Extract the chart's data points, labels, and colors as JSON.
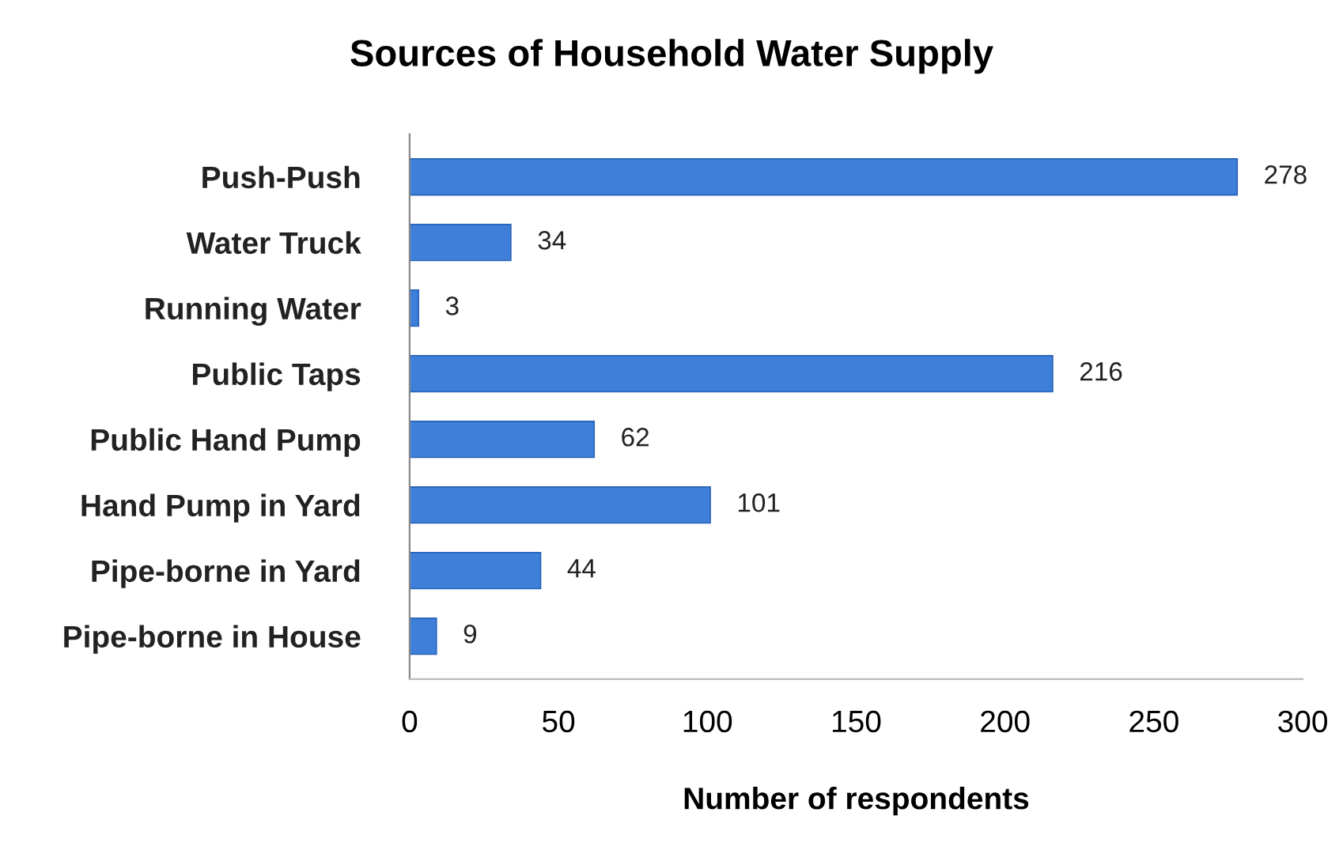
{
  "chart_data": {
    "type": "bar",
    "orientation": "horizontal",
    "title": "Sources of Household Water Supply",
    "xlabel": "Number of respondents",
    "categories": [
      "Push-Push",
      "Water Truck",
      "Running Water",
      "Public Taps",
      "Public Hand Pump",
      "Hand Pump in Yard",
      "Pipe-borne in Yard",
      "Pipe-borne in House"
    ],
    "values": [
      278,
      34,
      3,
      216,
      62,
      101,
      44,
      9
    ],
    "color": "#3d7fd9",
    "xlim": [
      0,
      300
    ],
    "xticks": [
      0,
      50,
      100,
      150,
      200,
      250,
      300
    ],
    "grid": false,
    "data_labels": true
  }
}
